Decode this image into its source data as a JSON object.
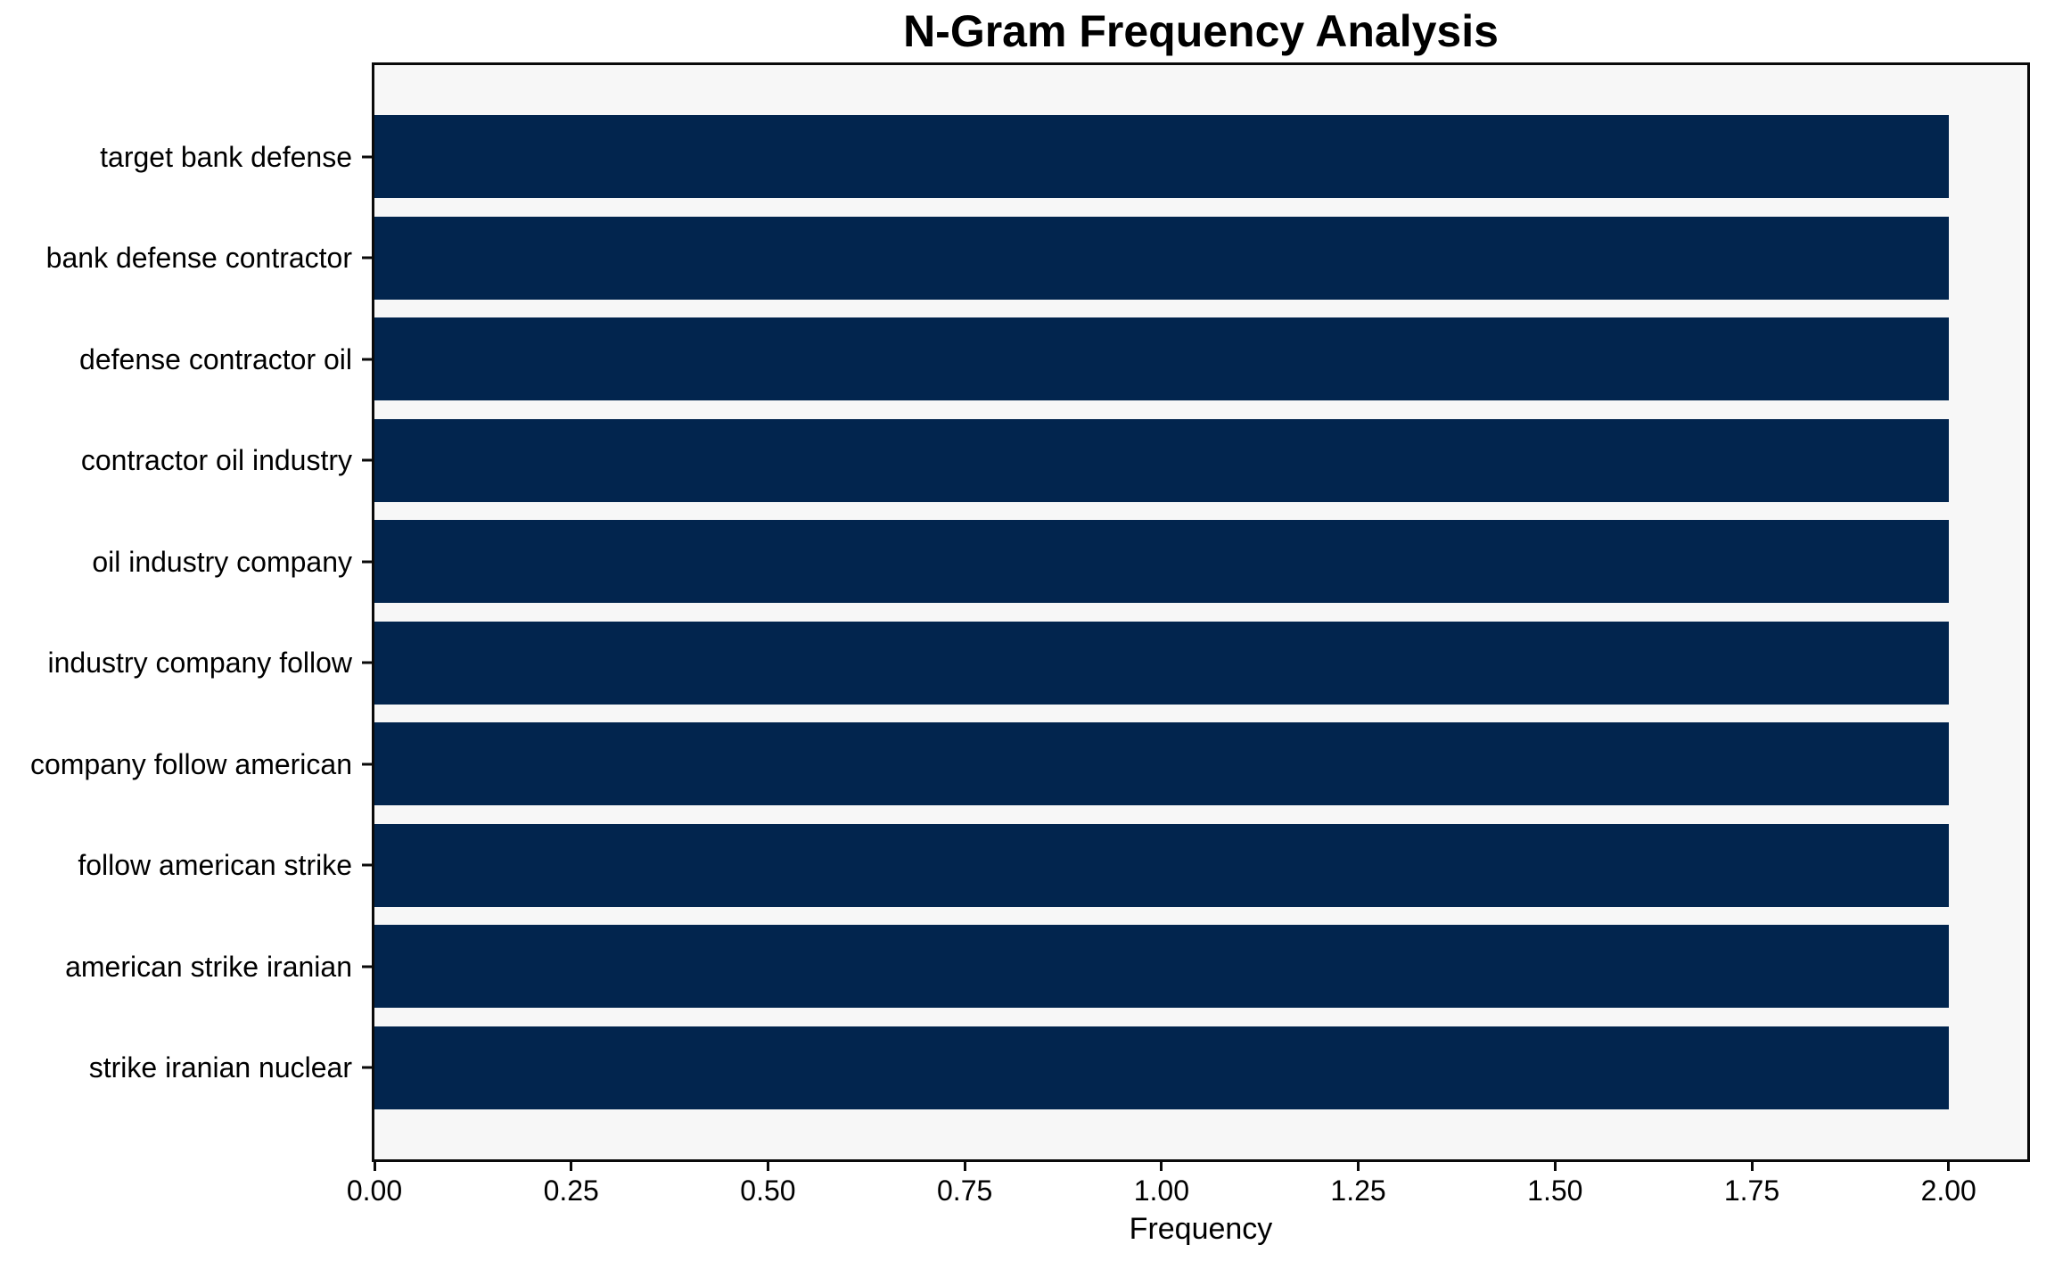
{
  "chart_data": {
    "type": "bar",
    "orientation": "horizontal",
    "title": "N-Gram Frequency Analysis",
    "xlabel": "Frequency",
    "ylabel": "",
    "categories": [
      "target bank defense",
      "bank defense contractor",
      "defense contractor oil",
      "contractor oil industry",
      "oil industry company",
      "industry company follow",
      "company follow american",
      "follow american strike",
      "american strike iranian",
      "strike iranian nuclear"
    ],
    "values": [
      2.0,
      2.0,
      2.0,
      2.0,
      2.0,
      2.0,
      2.0,
      2.0,
      2.0,
      2.0
    ],
    "xlim": [
      0,
      2.1
    ],
    "xticks": {
      "labels": [
        "0.00",
        "0.25",
        "0.50",
        "0.75",
        "1.00",
        "1.25",
        "1.50",
        "1.75",
        "2.00"
      ],
      "values": [
        0,
        0.25,
        0.5,
        0.75,
        1.0,
        1.25,
        1.5,
        1.75,
        2.0
      ]
    },
    "grid": false,
    "legend": null,
    "colors": {
      "bar": "#02254e",
      "plot_background": "#f7f7f7",
      "figure_background": "#ffffff",
      "spine": "#0a0a0a",
      "text": "#000000"
    }
  }
}
